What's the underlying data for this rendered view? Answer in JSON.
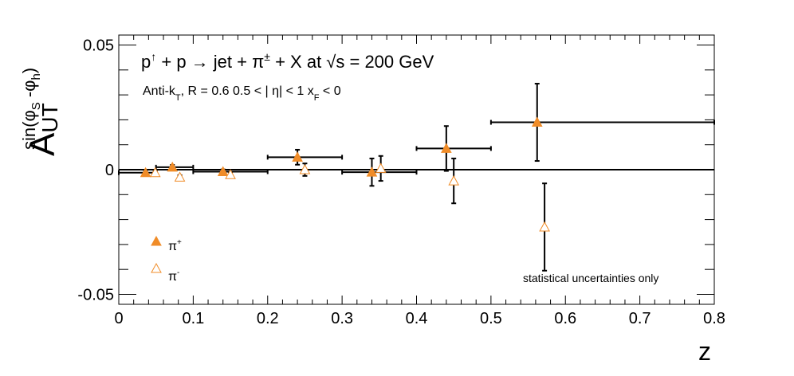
{
  "chart_data": {
    "type": "scatter",
    "title": {
      "p1": "p",
      "arrow1": "↑",
      "p2": " + p ",
      "arrow2": "→",
      "p3": " jet + ",
      "pi": "π",
      "pm": "±",
      "p4": " + X at ",
      "root": "√s",
      "p5": " = 200 GeV"
    },
    "subtitle": {
      "a": "Anti-k",
      "a_sub": "T",
      "b": ", R = 0.6   0.5 < | η| < 1   x",
      "b_sub": "F",
      "c": " < 0"
    },
    "ylabel": {
      "A": "A",
      "A_sub": "UT",
      "sup1": "sin(φ",
      "sup_s": "S",
      "sup2": " -φ",
      "sup_h": "h",
      "sup3": ")"
    },
    "xlabel": "z",
    "xlim": [
      0,
      0.8
    ],
    "ylim": [
      -0.054,
      0.054
    ],
    "x_tick_labels": [
      "0",
      "0.1",
      "0.2",
      "0.3",
      "0.4",
      "0.5",
      "0.6",
      "0.7",
      "0.8"
    ],
    "y_tick_labels": [
      "-0.05",
      "0",
      "0.05"
    ],
    "legend_position": "lower-left",
    "annotation": "statistical uncertainties only",
    "annotation_color": "#e60000",
    "marker_color": "#f08c28",
    "bins": [
      {
        "lo": 0.0,
        "hi": 0.05
      },
      {
        "lo": 0.05,
        "hi": 0.1
      },
      {
        "lo": 0.1,
        "hi": 0.2
      },
      {
        "lo": 0.2,
        "hi": 0.3
      },
      {
        "lo": 0.3,
        "hi": 0.4
      },
      {
        "lo": 0.4,
        "hi": 0.5
      },
      {
        "lo": 0.5,
        "hi": 0.8
      }
    ],
    "series": [
      {
        "name": "π",
        "name_sup": "+",
        "marker": "filled-triangle",
        "points": [
          {
            "x": 0.036,
            "y": -0.0012,
            "err": 0.0008
          },
          {
            "x": 0.072,
            "y": 0.001,
            "err": 0.0009
          },
          {
            "x": 0.14,
            "y": -0.0008,
            "err": 0.0009
          },
          {
            "x": 0.24,
            "y": 0.005,
            "err": 0.003
          },
          {
            "x": 0.34,
            "y": -0.001,
            "err": 0.0055
          },
          {
            "x": 0.44,
            "y": 0.0085,
            "err": 0.009
          },
          {
            "x": 0.562,
            "y": 0.019,
            "err": 0.0155
          }
        ]
      },
      {
        "name": "π",
        "name_sup": "-",
        "marker": "open-triangle",
        "points": [
          {
            "x": 0.049,
            "y": -0.0012,
            "err": 0.0007
          },
          {
            "x": 0.082,
            "y": -0.003,
            "err": 0.0008
          },
          {
            "x": 0.15,
            "y": -0.002,
            "err": 0.001
          },
          {
            "x": 0.25,
            "y": 0.0,
            "err": 0.0025
          },
          {
            "x": 0.352,
            "y": 0.0005,
            "err": 0.005
          },
          {
            "x": 0.45,
            "y": -0.0045,
            "err": 0.009
          },
          {
            "x": 0.572,
            "y": -0.023,
            "err": 0.0175
          }
        ]
      }
    ]
  }
}
